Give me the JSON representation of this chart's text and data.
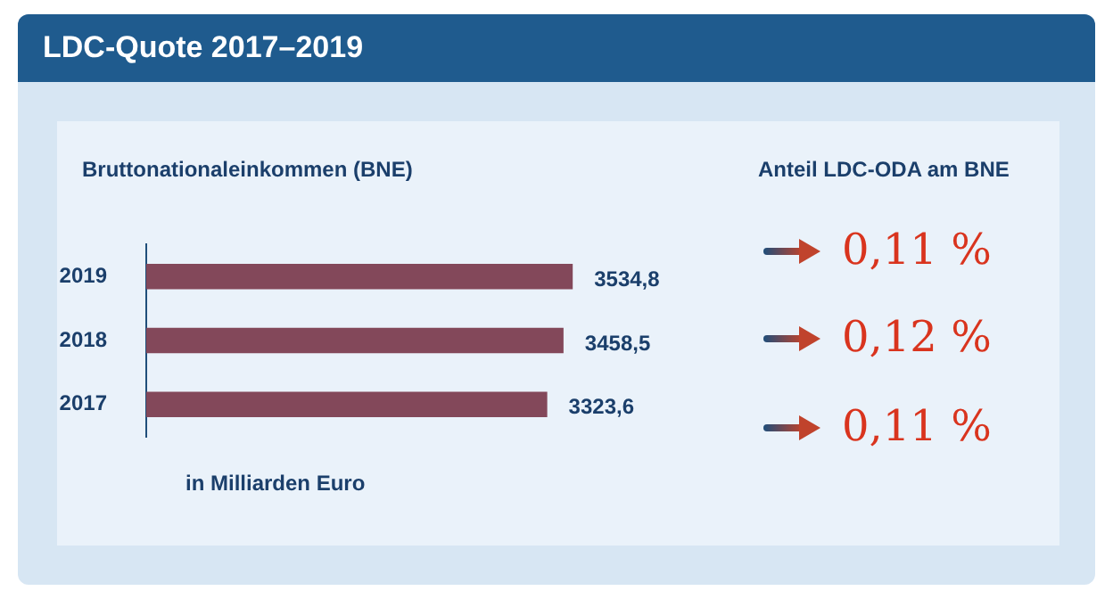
{
  "chart_data": [
    {
      "type": "bar",
      "orientation": "horizontal",
      "title": "LDC-Quote 2017–2019",
      "subtitle": "Bruttonationaleinkommen (BNE)",
      "xlabel": "in Milliarden Euro",
      "categories": [
        "2019",
        "2018",
        "2017"
      ],
      "values": [
        3534.8,
        3458.5,
        3323.6
      ],
      "color": "#83485a",
      "value_labels": [
        "3534,8",
        "3458,5",
        "3323,6"
      ],
      "tick_labels": "y",
      "legend": false
    },
    {
      "type": "other",
      "title": "Anteil LDC-ODA am BNE",
      "categories": [
        null,
        null,
        null
      ],
      "values": [
        0.11,
        0.12,
        0.11
      ],
      "value_labels": [
        "0,11 %",
        "0,12 %",
        "0,11 %"
      ],
      "color": "#d9341e"
    }
  ]
}
